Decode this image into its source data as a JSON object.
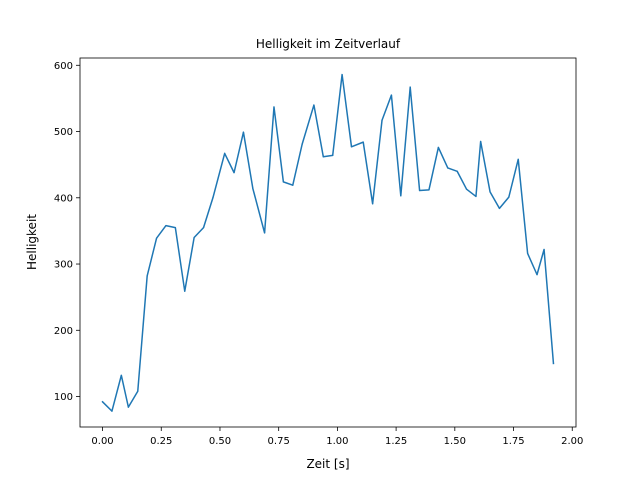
{
  "chart_data": {
    "type": "line",
    "title": "Helligkeit im Zeitverlauf",
    "xlabel": "Zeit [s]",
    "ylabel": "Helligkeit",
    "xlim": [
      -0.096,
      2.016
    ],
    "ylim": [
      54,
      611
    ],
    "grid": false,
    "line_color": "#1f77b4",
    "x_ticks": [
      0.0,
      0.25,
      0.5,
      0.75,
      1.0,
      1.25,
      1.5,
      1.75,
      2.0
    ],
    "x_tick_labels": [
      "0.00",
      "0.25",
      "0.50",
      "0.75",
      "1.00",
      "1.25",
      "1.50",
      "1.75",
      "2.00"
    ],
    "y_ticks": [
      100,
      200,
      300,
      400,
      500,
      600
    ],
    "y_tick_labels": [
      "100",
      "200",
      "300",
      "400",
      "500",
      "600"
    ],
    "series": [
      {
        "x": [
          0.0,
          0.04,
          0.08,
          0.11,
          0.15,
          0.19,
          0.23,
          0.27,
          0.31,
          0.35,
          0.39,
          0.43,
          0.47,
          0.52,
          0.56,
          0.6,
          0.64,
          0.69,
          0.73,
          0.77,
          0.81,
          0.85,
          0.9,
          0.94,
          0.98,
          1.02,
          1.06,
          1.11,
          1.15,
          1.19,
          1.23,
          1.27,
          1.31,
          1.35,
          1.39,
          1.43,
          1.47,
          1.51,
          1.55,
          1.59,
          1.61,
          1.65,
          1.69,
          1.73,
          1.77,
          1.81,
          1.85,
          1.88,
          1.92
        ],
        "y": [
          92,
          78,
          132,
          84,
          108,
          282,
          339,
          358,
          355,
          259,
          340,
          355,
          400,
          467,
          438,
          499,
          414,
          347,
          537,
          424,
          419,
          481,
          540,
          462,
          464,
          586,
          477,
          484,
          391,
          517,
          555,
          403,
          567,
          411,
          412,
          476,
          445,
          440,
          413,
          402,
          485,
          409,
          384,
          401,
          458,
          316,
          284,
          322,
          150
        ]
      }
    ]
  }
}
